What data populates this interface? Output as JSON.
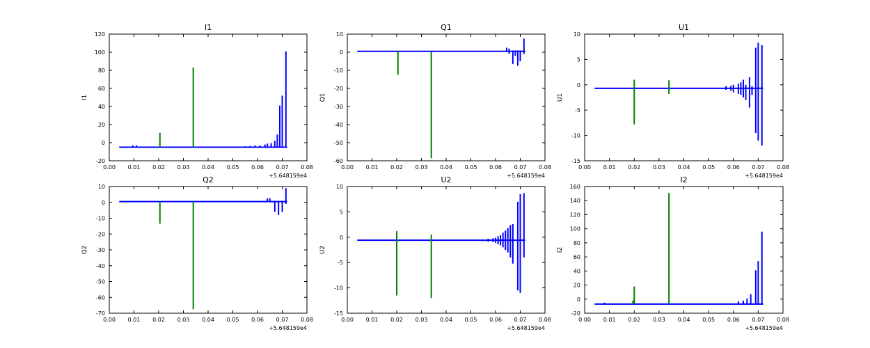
{
  "colors": {
    "baseline": "#0000ff",
    "spike": "#007f00",
    "axes": "#000000",
    "background": "#ffffff"
  },
  "chart_data": [
    {
      "type": "line",
      "title": "I1",
      "ylabel": "I1",
      "xlim": [
        0.0,
        0.08
      ],
      "ylim": [
        -20,
        120
      ],
      "xticks": [
        "0.00",
        "0.01",
        "0.02",
        "0.03",
        "0.04",
        "0.05",
        "0.06",
        "0.07",
        "0.08"
      ],
      "yticks": [
        "-20",
        "0",
        "20",
        "40",
        "60",
        "80",
        "100",
        "120"
      ],
      "x_offset_label": "+5.648159e4",
      "x_range": [
        0.004,
        0.072
      ],
      "baseline": -5,
      "series": [
        {
          "color": "#0000ff",
          "spikes": [
            [
              0.0095,
              -5,
              -3
            ],
            [
              0.011,
              -5,
              -3
            ],
            [
              0.055,
              -5,
              -4
            ],
            [
              0.057,
              -5,
              -3.5
            ],
            [
              0.059,
              -5,
              -3
            ],
            [
              0.061,
              -5,
              -3
            ],
            [
              0.063,
              -5,
              -2
            ],
            [
              0.064,
              -5,
              -1
            ],
            [
              0.0655,
              -5,
              -0.5
            ],
            [
              0.067,
              -5,
              2
            ],
            [
              0.068,
              -5,
              9
            ],
            [
              0.069,
              -5,
              41
            ],
            [
              0.07,
              -5,
              52
            ],
            [
              0.0715,
              -5,
              101
            ]
          ]
        },
        {
          "color": "#007f00",
          "spikes": [
            [
              0.0205,
              -5,
              11
            ],
            [
              0.034,
              -5,
              83
            ]
          ]
        }
      ]
    },
    {
      "type": "line",
      "title": "Q1",
      "ylabel": "Q1",
      "xlim": [
        0.0,
        0.08
      ],
      "ylim": [
        -60,
        10
      ],
      "xticks": [
        "0.00",
        "0.01",
        "0.02",
        "0.03",
        "0.04",
        "0.05",
        "0.06",
        "0.07",
        "0.08"
      ],
      "yticks": [
        "-60",
        "-50",
        "-40",
        "-30",
        "-20",
        "-10",
        "0",
        "10"
      ],
      "x_offset_label": "+5.648159e4",
      "x_range": [
        0.004,
        0.072
      ],
      "baseline": 0.5,
      "series": [
        {
          "color": "#0000ff",
          "spikes": [
            [
              0.0645,
              0.5,
              2.5
            ],
            [
              0.0655,
              -1,
              2
            ],
            [
              0.067,
              -6.5,
              1
            ],
            [
              0.068,
              -2,
              1
            ],
            [
              0.069,
              -7.5,
              1
            ],
            [
              0.07,
              -5,
              1
            ],
            [
              0.0715,
              -1,
              7.5
            ]
          ]
        },
        {
          "color": "#007f00",
          "spikes": [
            [
              0.0205,
              -12.5,
              0.5
            ],
            [
              0.034,
              -58.5,
              0.5
            ]
          ]
        }
      ]
    },
    {
      "type": "line",
      "title": "U1",
      "ylabel": "U1",
      "xlim": [
        0.0,
        0.08
      ],
      "ylim": [
        -15,
        10
      ],
      "xticks": [
        "0.00",
        "0.01",
        "0.02",
        "0.03",
        "0.04",
        "0.05",
        "0.06",
        "0.07",
        "0.08"
      ],
      "yticks": [
        "-15",
        "-10",
        "-5",
        "0",
        "5",
        "10"
      ],
      "x_offset_label": "+5.648159e4",
      "x_range": [
        0.004,
        0.072
      ],
      "baseline": -0.7,
      "series": [
        {
          "color": "#0000ff",
          "spikes": [
            [
              0.057,
              -1.0,
              -0.3
            ],
            [
              0.059,
              -1.2,
              -0.2
            ],
            [
              0.06,
              -1.5,
              0
            ],
            [
              0.062,
              -1.8,
              0.2
            ],
            [
              0.063,
              -2,
              0.5
            ],
            [
              0.064,
              -2.5,
              1
            ],
            [
              0.065,
              -3,
              0
            ],
            [
              0.0665,
              -4.5,
              1.5
            ],
            [
              0.0675,
              -2,
              -0.3
            ],
            [
              0.069,
              -9.5,
              7.3
            ],
            [
              0.07,
              -11,
              8.3
            ],
            [
              0.0715,
              -12,
              7.8
            ]
          ]
        },
        {
          "color": "#007f00",
          "spikes": [
            [
              0.02,
              -7.8,
              1.0
            ],
            [
              0.034,
              -1.8,
              0.9
            ]
          ]
        }
      ]
    },
    {
      "type": "line",
      "title": "Q2",
      "ylabel": "Q2",
      "xlim": [
        0.0,
        0.08
      ],
      "ylim": [
        -70,
        10
      ],
      "xticks": [
        "0.00",
        "0.01",
        "0.02",
        "0.03",
        "0.04",
        "0.05",
        "0.06",
        "0.07",
        "0.08"
      ],
      "yticks": [
        "-70",
        "-60",
        "-50",
        "-40",
        "-30",
        "-20",
        "-10",
        "0",
        "10"
      ],
      "x_offset_label": "+5.648159e4",
      "x_range": [
        0.004,
        0.072
      ],
      "baseline": 0.5,
      "series": [
        {
          "color": "#0000ff",
          "spikes": [
            [
              0.064,
              0.5,
              2.5
            ],
            [
              0.065,
              0,
              2.5
            ],
            [
              0.067,
              -6,
              1
            ],
            [
              0.0685,
              -8,
              1
            ],
            [
              0.07,
              -6,
              1
            ],
            [
              0.0715,
              -1,
              9
            ]
          ]
        },
        {
          "color": "#007f00",
          "spikes": [
            [
              0.0205,
              -13.5,
              0.5
            ],
            [
              0.034,
              -67.5,
              0.5
            ]
          ]
        }
      ]
    },
    {
      "type": "line",
      "title": "U2",
      "ylabel": "U2",
      "xlim": [
        0.0,
        0.08
      ],
      "ylim": [
        -15,
        10
      ],
      "xticks": [
        "0.00",
        "0.01",
        "0.02",
        "0.03",
        "0.04",
        "0.05",
        "0.06",
        "0.07",
        "0.08"
      ],
      "yticks": [
        "-15",
        "-10",
        "-5",
        "0",
        "5",
        "10"
      ],
      "x_offset_label": "+5.648159e4",
      "x_range": [
        0.004,
        0.072
      ],
      "baseline": -0.6,
      "series": [
        {
          "color": "#0000ff",
          "spikes": [
            [
              0.057,
              -0.9,
              -0.3
            ],
            [
              0.059,
              -1.0,
              -0.2
            ],
            [
              0.06,
              -1.1,
              -0.1
            ],
            [
              0.061,
              -1.4,
              0.2
            ],
            [
              0.062,
              -1.6,
              0.4
            ],
            [
              0.063,
              -2.0,
              0.9
            ],
            [
              0.064,
              -2.5,
              1.3
            ],
            [
              0.065,
              -3.0,
              1.8
            ],
            [
              0.066,
              -4.0,
              2.4
            ],
            [
              0.067,
              -5.2,
              2.6
            ],
            [
              0.069,
              -10.5,
              7.0
            ],
            [
              0.07,
              -11.0,
              8.5
            ],
            [
              0.0715,
              -4.0,
              8.7
            ]
          ]
        },
        {
          "color": "#007f00",
          "spikes": [
            [
              0.02,
              -11.5,
              1.2
            ],
            [
              0.034,
              -12.0,
              0.5
            ]
          ]
        }
      ]
    },
    {
      "type": "line",
      "title": "I2",
      "ylabel": "I2",
      "xlim": [
        0.0,
        0.08
      ],
      "ylim": [
        -20,
        160
      ],
      "xticks": [
        "0.00",
        "0.01",
        "0.02",
        "0.03",
        "0.04",
        "0.05",
        "0.06",
        "0.07",
        "0.08"
      ],
      "yticks": [
        "-20",
        "0",
        "20",
        "40",
        "60",
        "80",
        "100",
        "120",
        "140",
        "160"
      ],
      "x_offset_label": "+5.648159e4",
      "x_range": [
        0.004,
        0.072
      ],
      "baseline": -7,
      "series": [
        {
          "color": "#0000ff",
          "spikes": [
            [
              0.008,
              -7,
              -5
            ],
            [
              0.062,
              -7,
              -3
            ],
            [
              0.064,
              -7,
              -2
            ],
            [
              0.0655,
              -7,
              1
            ],
            [
              0.067,
              -7,
              7
            ],
            [
              0.069,
              -7,
              41
            ],
            [
              0.07,
              -7,
              54
            ],
            [
              0.0715,
              -7,
              96
            ]
          ]
        },
        {
          "color": "#007f00",
          "spikes": [
            [
              0.0195,
              -7,
              -2
            ],
            [
              0.02,
              -7,
              18
            ],
            [
              0.034,
              -7,
              151
            ]
          ]
        }
      ]
    }
  ]
}
